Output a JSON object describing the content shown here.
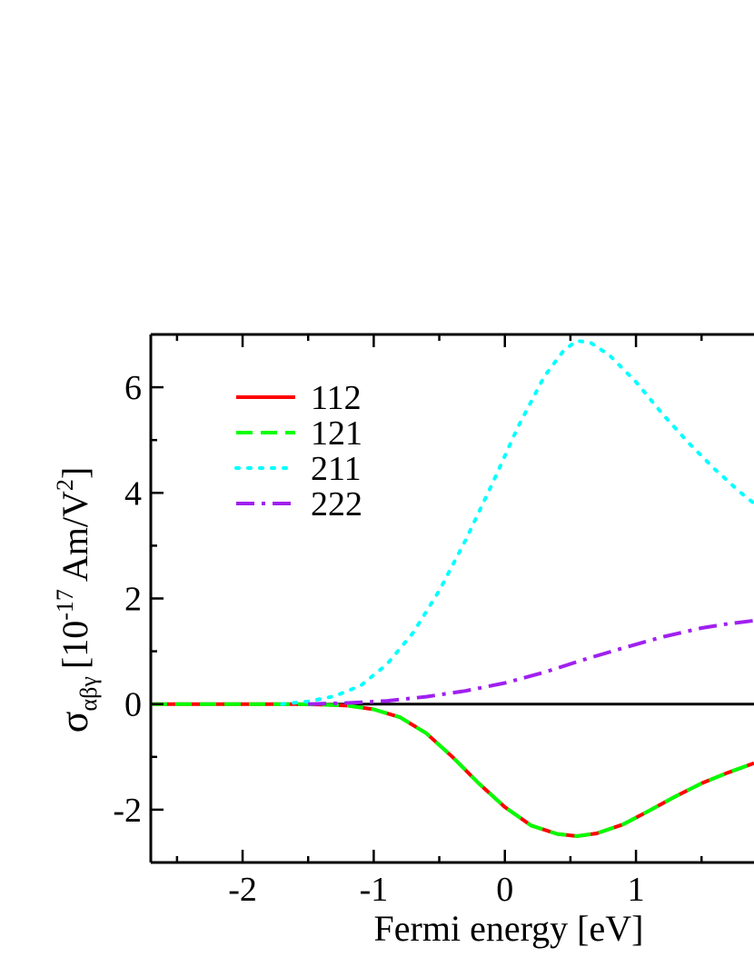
{
  "chart_data": {
    "type": "line",
    "xlabel": "Fermi energy [eV]",
    "ylabel": {
      "symbol": "σ",
      "subscript": "αβγ",
      "bracket_open": "[10",
      "exponent": "-17",
      "unit": "Am/V",
      "unit_exponent": "2",
      "bracket_close": "]"
    },
    "xlim": [
      -2.7,
      1.9
    ],
    "ylim": [
      -3,
      7
    ],
    "xticks": [
      -2,
      -1,
      0,
      1
    ],
    "xtick_labels": [
      "-2",
      "-1",
      "0",
      "1"
    ],
    "yticks": [
      -2,
      0,
      2,
      4,
      6
    ],
    "ytick_labels": [
      "-2",
      "0",
      "2",
      "4",
      "6"
    ],
    "legend_position": "top-left",
    "zero_line": true,
    "series": [
      {
        "name": "112",
        "color": "#ff0000",
        "style": "solid",
        "x": [
          -2.7,
          -1.6,
          -1.4,
          -1.2,
          -1.0,
          -0.8,
          -0.6,
          -0.4,
          -0.2,
          0.0,
          0.2,
          0.4,
          0.55,
          0.7,
          0.9,
          1.1,
          1.3,
          1.5,
          1.7,
          1.9
        ],
        "y": [
          0.0,
          0.0,
          -0.01,
          -0.03,
          -0.1,
          -0.25,
          -0.55,
          -1.0,
          -1.5,
          -1.95,
          -2.3,
          -2.46,
          -2.5,
          -2.45,
          -2.28,
          -2.02,
          -1.75,
          -1.5,
          -1.3,
          -1.12
        ]
      },
      {
        "name": "121",
        "color": "#00ff00",
        "style": "dashed",
        "x": [
          -2.7,
          -1.6,
          -1.4,
          -1.2,
          -1.0,
          -0.8,
          -0.6,
          -0.4,
          -0.2,
          0.0,
          0.2,
          0.4,
          0.55,
          0.7,
          0.9,
          1.1,
          1.3,
          1.5,
          1.7,
          1.9
        ],
        "y": [
          0.0,
          0.0,
          -0.01,
          -0.03,
          -0.1,
          -0.25,
          -0.55,
          -1.0,
          -1.5,
          -1.95,
          -2.3,
          -2.46,
          -2.5,
          -2.45,
          -2.28,
          -2.02,
          -1.75,
          -1.5,
          -1.3,
          -1.12
        ]
      },
      {
        "name": "211",
        "color": "#00ffff",
        "style": "dotted",
        "x": [
          -1.7,
          -1.5,
          -1.3,
          -1.1,
          -0.9,
          -0.7,
          -0.5,
          -0.3,
          -0.1,
          0.1,
          0.3,
          0.45,
          0.55,
          0.65,
          0.8,
          1.0,
          1.2,
          1.4,
          1.6,
          1.8,
          1.9
        ],
        "y": [
          0.0,
          0.05,
          0.15,
          0.35,
          0.75,
          1.35,
          2.15,
          3.1,
          4.15,
          5.25,
          6.2,
          6.7,
          6.88,
          6.85,
          6.6,
          6.1,
          5.5,
          4.95,
          4.45,
          4.0,
          3.8
        ]
      },
      {
        "name": "222",
        "color": "#a020f0",
        "style": "dashdot",
        "x": [
          -1.5,
          -1.2,
          -0.9,
          -0.6,
          -0.3,
          0.0,
          0.3,
          0.6,
          0.9,
          1.2,
          1.5,
          1.7,
          1.9
        ],
        "y": [
          0.0,
          0.02,
          0.06,
          0.14,
          0.25,
          0.4,
          0.6,
          0.84,
          1.06,
          1.27,
          1.44,
          1.52,
          1.58
        ]
      }
    ]
  }
}
